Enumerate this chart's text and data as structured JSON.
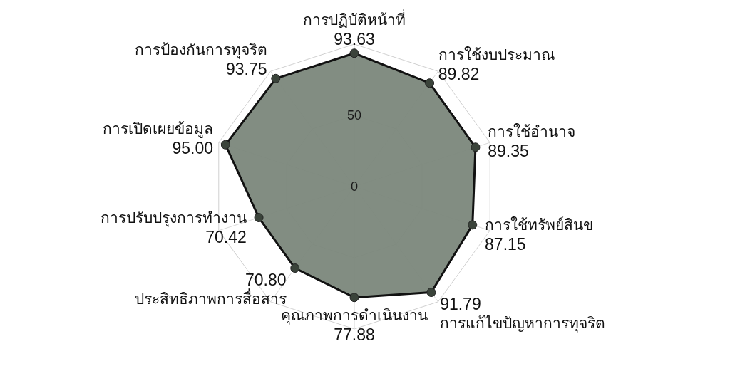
{
  "chart_data": {
    "type": "radar",
    "categories": [
      "การปฏิบัติหน้าที่",
      "การใช้งบประมาณ",
      "การใช้อำนาจ",
      "การใช้ทรัพย์สินข",
      "การแก้ไขปัญหาการทุจริต",
      "คุณภาพการดำเนินงาน",
      "ประสิทธิภาพการสื่อสาร",
      "การปรับปรุงการทำงาน",
      "การเปิดเผยข้อมูล",
      "การป้องกันการทุจริต"
    ],
    "series": [
      {
        "color": "#7b877b",
        "values": [
          93.63,
          89.82,
          89.35,
          87.15,
          91.79,
          77.88,
          70.8,
          70.42,
          95.0,
          93.75
        ],
        "value_labels": [
          "93.63",
          "89.82",
          "89.35",
          "87.15",
          "91.79",
          "77.88",
          "70.80",
          "70.42",
          "95.00",
          "93.75"
        ]
      }
    ],
    "ylim": [
      0,
      100
    ],
    "yticks": [
      0,
      50
    ],
    "grid": true,
    "marker": "circle"
  }
}
